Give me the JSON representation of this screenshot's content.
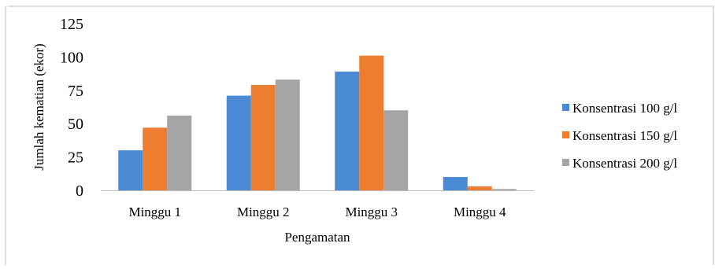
{
  "chart_data": {
    "type": "bar",
    "title": "",
    "xlabel": "Pengamatan",
    "ylabel": "Jumlah kematian (ekor)",
    "ylim": [
      0,
      125
    ],
    "yticks": [
      0,
      25,
      50,
      75,
      100,
      125
    ],
    "ytick_labels": [
      "0",
      "25",
      "50",
      "75",
      "100",
      "125"
    ],
    "categories": [
      "Minggu 1",
      "Minggu 2",
      "Minggu 3",
      "Minggu 4"
    ],
    "series": [
      {
        "name": "Konsentrasi 100 g/l",
        "color": "#4a8ad4",
        "values": [
          30,
          71,
          89,
          10
        ]
      },
      {
        "name": "Konsentrasi 150 g/l",
        "color": "#ed7d31",
        "values": [
          47,
          79,
          101,
          3
        ]
      },
      {
        "name": "Konsentrasi 200 g/l",
        "color": "#a5a5a5",
        "values": [
          56,
          83,
          60,
          1
        ]
      }
    ],
    "grid": false,
    "legend_position": "right"
  }
}
